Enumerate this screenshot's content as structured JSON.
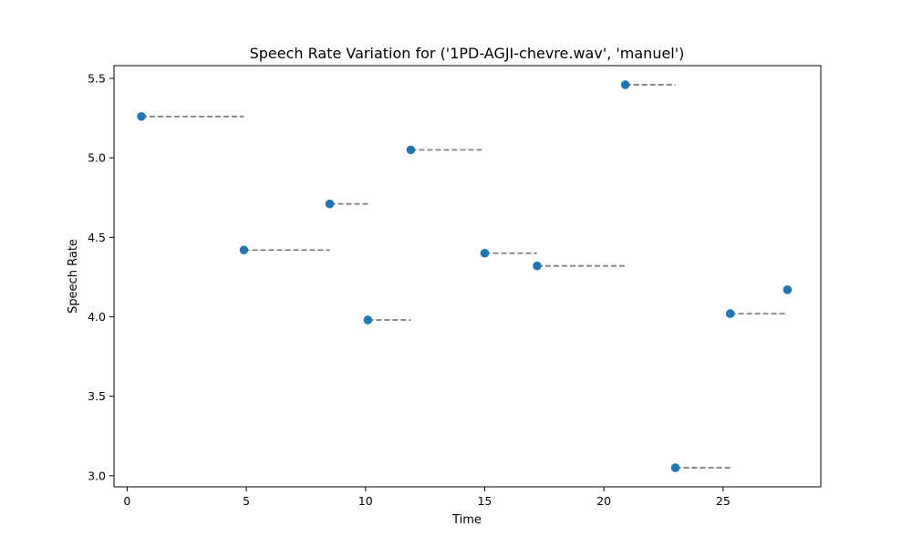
{
  "chart_data": {
    "type": "scatter",
    "title": "Speech Rate Variation for ('1PD-AGJI-chevre.wav', 'manuel')",
    "xlabel": "Time",
    "ylabel": "Speech Rate",
    "xlim": [
      -0.55,
      29.1
    ],
    "ylim": [
      2.93,
      5.58
    ],
    "xticks": [
      0,
      5,
      10,
      15,
      20,
      25
    ],
    "yticks": [
      3.0,
      3.5,
      4.0,
      4.5,
      5.0,
      5.5
    ],
    "xtick_labels": [
      "0",
      "5",
      "10",
      "15",
      "20",
      "25"
    ],
    "ytick_labels": [
      "3.0",
      "3.5",
      "4.0",
      "4.5",
      "5.0",
      "5.5"
    ],
    "grid": false,
    "point_color": "#1f77b4",
    "segment_color": "#808080",
    "segments": [
      {
        "x_start": 0.6,
        "x_end": 4.9,
        "y": 5.26
      },
      {
        "x_start": 4.9,
        "x_end": 8.5,
        "y": 4.42
      },
      {
        "x_start": 8.5,
        "x_end": 10.1,
        "y": 4.71
      },
      {
        "x_start": 10.1,
        "x_end": 11.9,
        "y": 3.98
      },
      {
        "x_start": 11.9,
        "x_end": 15.0,
        "y": 5.05
      },
      {
        "x_start": 15.0,
        "x_end": 17.2,
        "y": 4.4
      },
      {
        "x_start": 17.2,
        "x_end": 20.9,
        "y": 4.32
      },
      {
        "x_start": 20.9,
        "x_end": 23.0,
        "y": 5.46
      },
      {
        "x_start": 23.0,
        "x_end": 25.3,
        "y": 3.05
      },
      {
        "x_start": 25.3,
        "x_end": 27.7,
        "y": 4.02
      }
    ],
    "points": [
      {
        "x": 0.6,
        "y": 5.26
      },
      {
        "x": 4.9,
        "y": 4.42
      },
      {
        "x": 8.5,
        "y": 4.71
      },
      {
        "x": 10.1,
        "y": 3.98
      },
      {
        "x": 11.9,
        "y": 5.05
      },
      {
        "x": 15.0,
        "y": 4.4
      },
      {
        "x": 17.2,
        "y": 4.32
      },
      {
        "x": 20.9,
        "y": 5.46
      },
      {
        "x": 23.0,
        "y": 3.05
      },
      {
        "x": 25.3,
        "y": 4.02
      },
      {
        "x": 27.7,
        "y": 4.17
      }
    ]
  }
}
